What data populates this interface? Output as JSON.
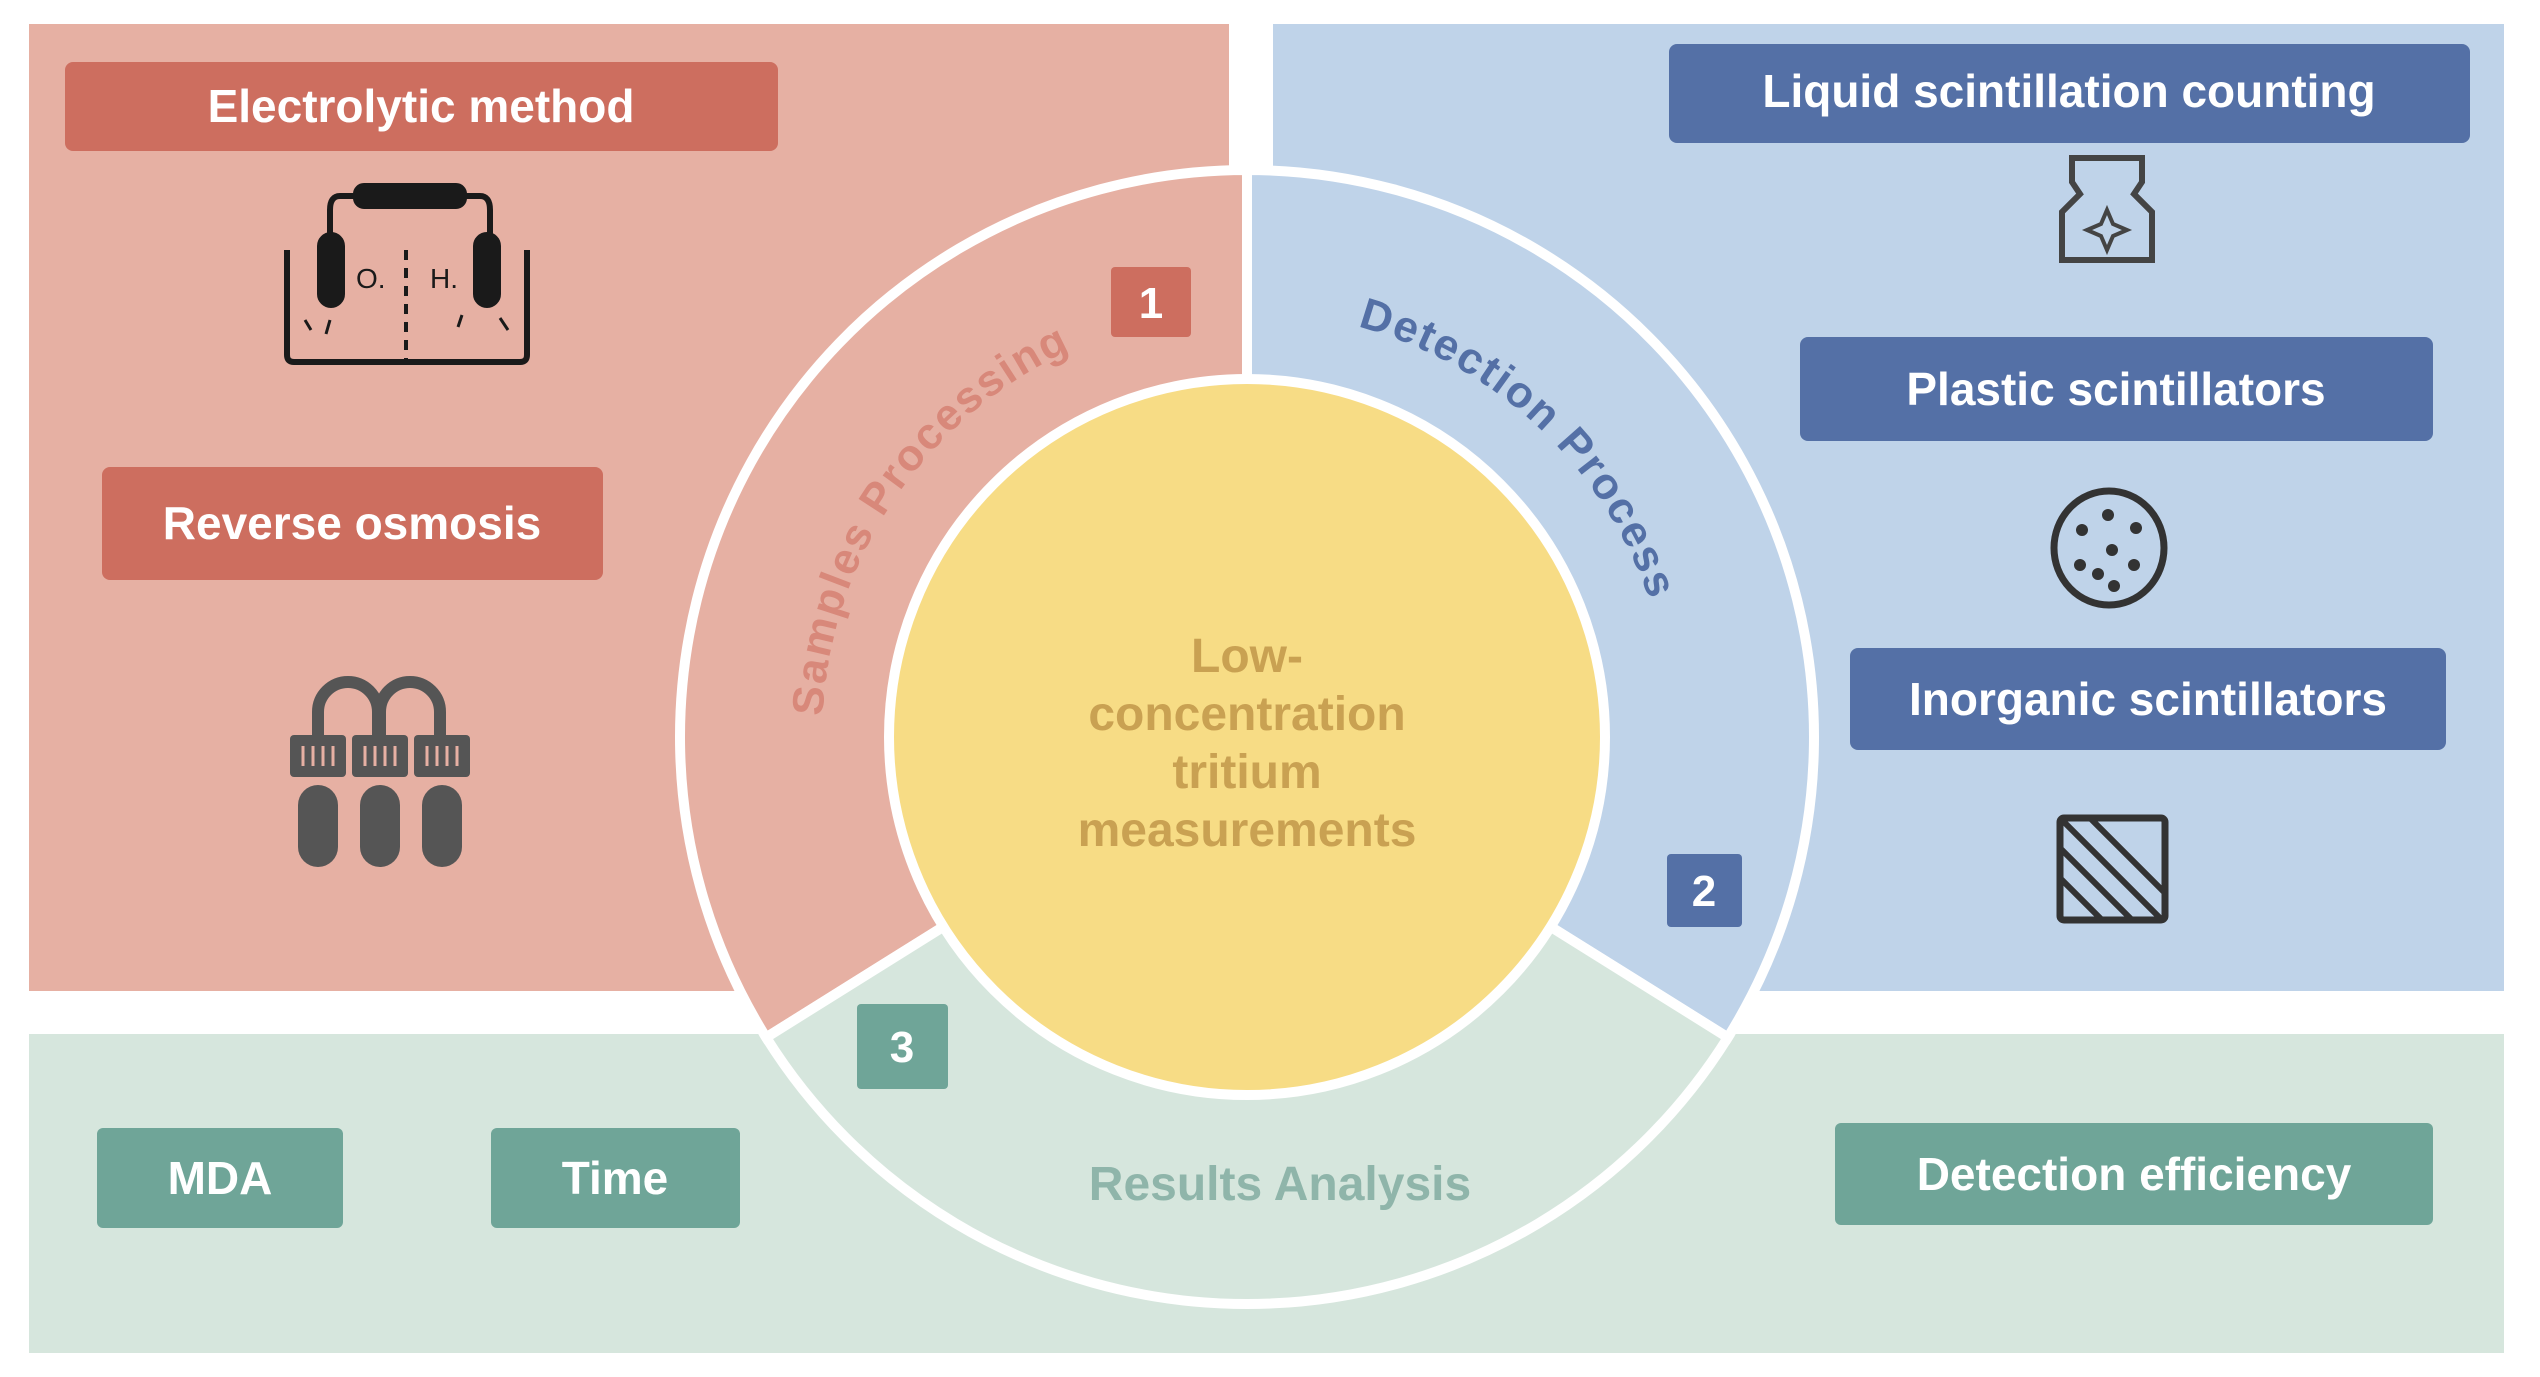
{
  "center": {
    "lines": [
      "Low-",
      "concentration",
      "tritium",
      "measurements"
    ]
  },
  "stages": [
    {
      "number": "1",
      "title": "Samples Processing",
      "color": "#cd6e5f"
    },
    {
      "number": "2",
      "title": "Detection Process",
      "color": "#5470a6"
    },
    {
      "number": "3",
      "title": "Results Analysis",
      "color": "#6fa598"
    }
  ],
  "samples": {
    "items": [
      {
        "label": "Electrolytic method",
        "icon": "electrolysis-cell-icon",
        "icon_text": [
          "O.",
          "H."
        ]
      },
      {
        "label": "Reverse osmosis",
        "icon": "osmosis-tubes-icon"
      }
    ]
  },
  "detection": {
    "items": [
      {
        "label": "Liquid scintillation counting",
        "icon": "scintillation-vial-icon"
      },
      {
        "label": "Plastic scintillators",
        "icon": "dotted-disc-icon"
      },
      {
        "label": "Inorganic scintillators",
        "icon": "hatched-crystal-icon"
      }
    ]
  },
  "results": {
    "items": [
      {
        "label": "MDA"
      },
      {
        "label": "Time"
      },
      {
        "label": "Detection efficiency"
      }
    ]
  },
  "colors": {
    "red_panel": "#e6b0a3",
    "blue_panel": "#bfd3e9",
    "green_panel": "#d6e6dd",
    "yellow_core": "#f7dc85",
    "center_text": "#c9a152"
  }
}
